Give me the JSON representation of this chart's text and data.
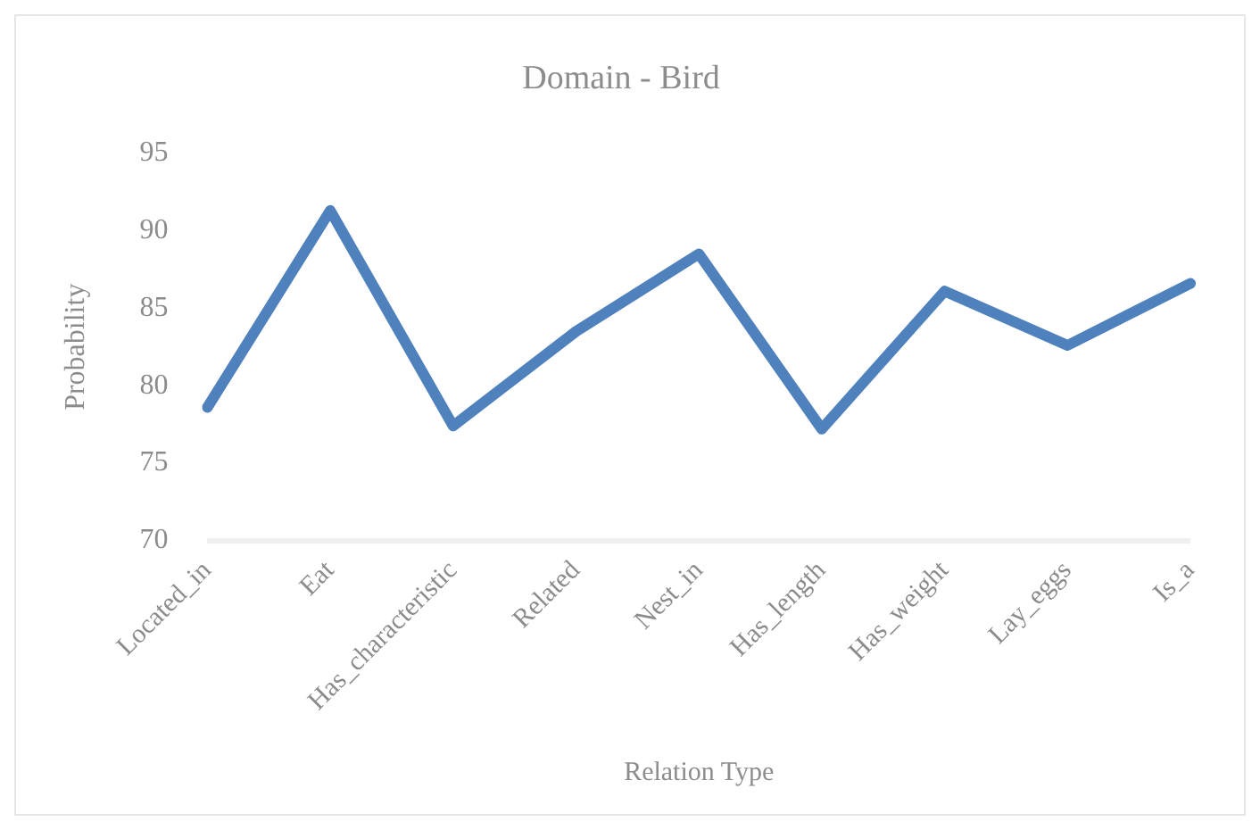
{
  "chart_data": {
    "type": "line",
    "title": "Domain - Bird",
    "xlabel": "Relation Type",
    "ylabel": "Probability",
    "categories": [
      "Located_in",
      "Eat",
      "Has_characteristic",
      "Related",
      "Nest_in",
      "Has_length",
      "Has_weight",
      "Lay_eggs",
      "Is_a"
    ],
    "series": [
      {
        "color": "#4f81bd",
        "values": [
          78.6,
          91.3,
          77.4,
          83.5,
          88.5,
          77.2,
          86.1,
          82.6,
          86.6
        ]
      }
    ],
    "ylim": [
      70,
      95
    ],
    "yticks": [
      70,
      75,
      80,
      85,
      90,
      95
    ],
    "grid": false,
    "legend": false,
    "marker": "none",
    "line_style": "solid"
  }
}
